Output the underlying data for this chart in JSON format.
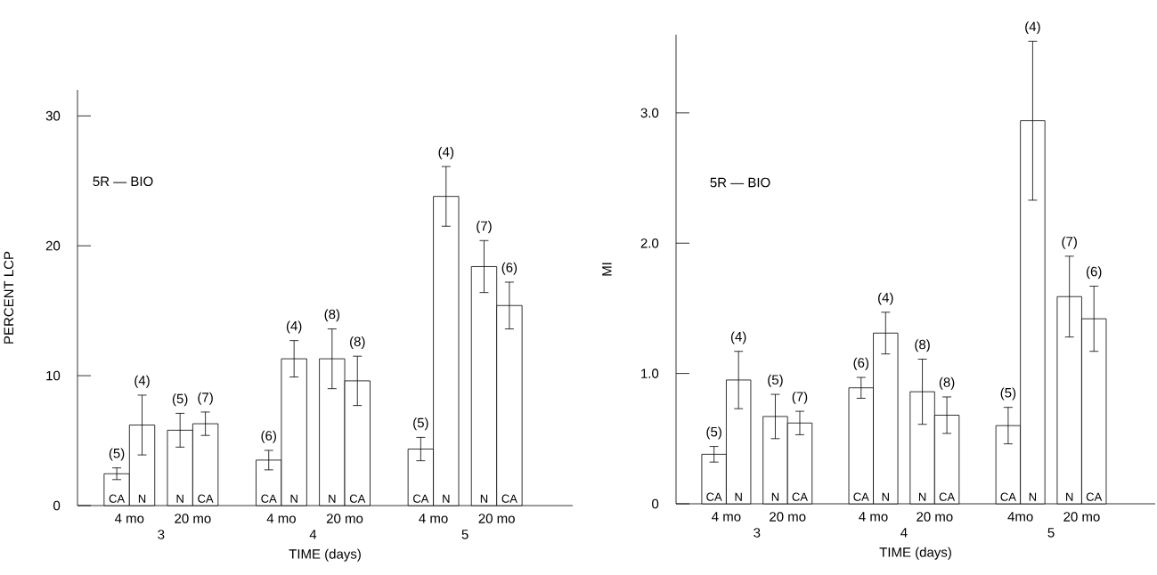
{
  "chart_data": [
    {
      "type": "bar",
      "xlabel": "TIME (days)",
      "ylabel": "PERCENT LCP",
      "color": "#ffffff",
      "categories": [
        "CA",
        "N",
        "N",
        "CA",
        "CA",
        "N",
        "N",
        "CA",
        "CA",
        "N",
        "N",
        "CA"
      ],
      "values": [
        2.45,
        6.2,
        5.8,
        6.3,
        3.5,
        11.3,
        11.3,
        9.6,
        4.35,
        23.8,
        18.4,
        15.4
      ],
      "errors": [
        0.45,
        2.3,
        1.3,
        0.9,
        0.75,
        1.4,
        2.3,
        1.9,
        0.9,
        2.3,
        2.0,
        1.8
      ],
      "annotations": [
        "(5)",
        "(4)",
        "(5)",
        "(7)",
        "(6)",
        "(4)",
        "(8)",
        "(8)",
        "(5)",
        "(4)",
        "(7)",
        "(6)",
        "4 mo",
        "20 mo",
        "4 mo",
        "20 mo",
        "4 mo",
        "20 mo",
        "3",
        "4",
        "5",
        "5R — BIO"
      ],
      "ylim": [
        0,
        32
      ],
      "yticks": [
        0,
        10,
        20,
        30
      ]
    },
    {
      "type": "bar",
      "xlabel": "TIME (days)",
      "ylabel": "MI",
      "color": "#ffffff",
      "categories": [
        "CA",
        "N",
        "N",
        "CA",
        "CA",
        "N",
        "N",
        "CA",
        "CA",
        "N",
        "N",
        "CA"
      ],
      "values": [
        0.38,
        0.95,
        0.67,
        0.62,
        0.89,
        1.31,
        0.86,
        0.68,
        0.6,
        2.94,
        1.59,
        1.42
      ],
      "errors": [
        0.06,
        0.22,
        0.17,
        0.09,
        0.08,
        0.16,
        0.25,
        0.14,
        0.14,
        0.61,
        0.31,
        0.25
      ],
      "annotations": [
        "(5)",
        "(4)",
        "(5)",
        "(7)",
        "(6)",
        "(4)",
        "(8)",
        "(8)",
        "(5)",
        "(4)",
        "(7)",
        "(6)",
        "4 mo",
        "20 mo",
        "4 mo",
        "20 mo",
        "4mo",
        "20 mo",
        "3",
        "4",
        "5",
        "5R — BIO"
      ],
      "ylim": [
        0,
        3.6
      ],
      "yticks": [
        0,
        {
          "value": 1,
          "label": "1.0"
        },
        {
          "value": 2,
          "label": "2.0"
        },
        {
          "value": 3,
          "label": "3.0"
        }
      ]
    }
  ]
}
